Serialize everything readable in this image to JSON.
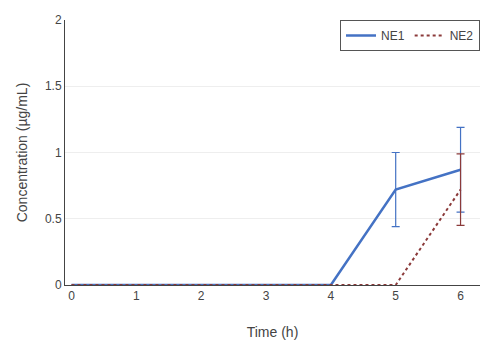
{
  "chart_data": {
    "type": "line",
    "x_label": "Time (h)",
    "y_label": "Concentration (µg/mL)",
    "x": [
      0,
      1,
      2,
      3,
      4,
      5,
      6
    ],
    "series": [
      {
        "name": "NE1",
        "color": "#4472C4",
        "line_style": "solid",
        "values": [
          0,
          0,
          0,
          0,
          0,
          0.72,
          0.87
        ],
        "yerr": [
          null,
          null,
          null,
          null,
          null,
          0.28,
          0.32
        ]
      },
      {
        "name": "NE2",
        "color": "#8B3A3A",
        "line_style": "dotted",
        "values": [
          0,
          0,
          0,
          0,
          0,
          0,
          0.72
        ],
        "yerr": [
          null,
          null,
          null,
          null,
          null,
          null,
          0.27
        ]
      }
    ],
    "xlim": [
      -0.1,
      6.3
    ],
    "xticks": [
      0,
      1,
      2,
      3,
      4,
      5,
      6
    ],
    "ylim": [
      0,
      2.0
    ],
    "yticks": [
      0,
      0.5,
      1,
      1.5,
      2
    ],
    "grid": "y",
    "legend": "upper right"
  }
}
